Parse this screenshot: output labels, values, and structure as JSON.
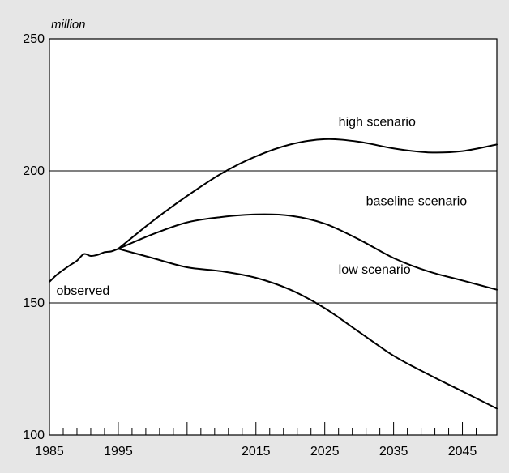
{
  "chart_data": {
    "type": "line",
    "unit_label": "million",
    "xlim": [
      1985,
      2050
    ],
    "ylim": [
      100,
      250
    ],
    "x_ticks": [
      1985,
      1995,
      2015,
      2025,
      2035,
      2045
    ],
    "y_ticks": [
      100,
      150,
      200,
      250
    ],
    "grid_y": [
      150,
      200
    ],
    "series": [
      {
        "name": "observed",
        "points": [
          [
            1985,
            158
          ],
          [
            1986,
            160.5
          ],
          [
            1987,
            162.5
          ],
          [
            1988,
            164.3
          ],
          [
            1989,
            166
          ],
          [
            1990,
            168.5
          ],
          [
            1991,
            167.8
          ],
          [
            1992,
            168.2
          ],
          [
            1993,
            169.2
          ],
          [
            1994,
            169.5
          ],
          [
            1995,
            170.5
          ]
        ]
      },
      {
        "name": "high scenario",
        "points": [
          [
            1995,
            170.5
          ],
          [
            2000,
            181
          ],
          [
            2005,
            190.5
          ],
          [
            2010,
            199
          ],
          [
            2015,
            205.5
          ],
          [
            2020,
            210
          ],
          [
            2025,
            212
          ],
          [
            2030,
            211
          ],
          [
            2035,
            208.5
          ],
          [
            2040,
            207
          ],
          [
            2045,
            207.5
          ],
          [
            2050,
            210
          ]
        ]
      },
      {
        "name": "baseline scenario",
        "points": [
          [
            1995,
            170.5
          ],
          [
            2000,
            176
          ],
          [
            2005,
            180.5
          ],
          [
            2010,
            182.5
          ],
          [
            2015,
            183.5
          ],
          [
            2020,
            183
          ],
          [
            2025,
            180
          ],
          [
            2030,
            174
          ],
          [
            2035,
            167
          ],
          [
            2040,
            162
          ],
          [
            2045,
            158.5
          ],
          [
            2050,
            155
          ]
        ]
      },
      {
        "name": "low scenario",
        "points": [
          [
            1995,
            170.5
          ],
          [
            2000,
            167
          ],
          [
            2005,
            163.5
          ],
          [
            2010,
            162
          ],
          [
            2015,
            159.5
          ],
          [
            2020,
            155
          ],
          [
            2025,
            148
          ],
          [
            2030,
            139
          ],
          [
            2035,
            130
          ],
          [
            2040,
            123
          ],
          [
            2045,
            116.5
          ],
          [
            2050,
            110
          ]
        ]
      }
    ],
    "annotations": [
      {
        "text": "high scenario",
        "x": 2027,
        "y": 217
      },
      {
        "text": "baseline scenario",
        "x": 2031,
        "y": 187
      },
      {
        "text": "low scenario",
        "x": 2027,
        "y": 161
      },
      {
        "text": "observed",
        "x": 1986,
        "y": 153
      }
    ]
  }
}
